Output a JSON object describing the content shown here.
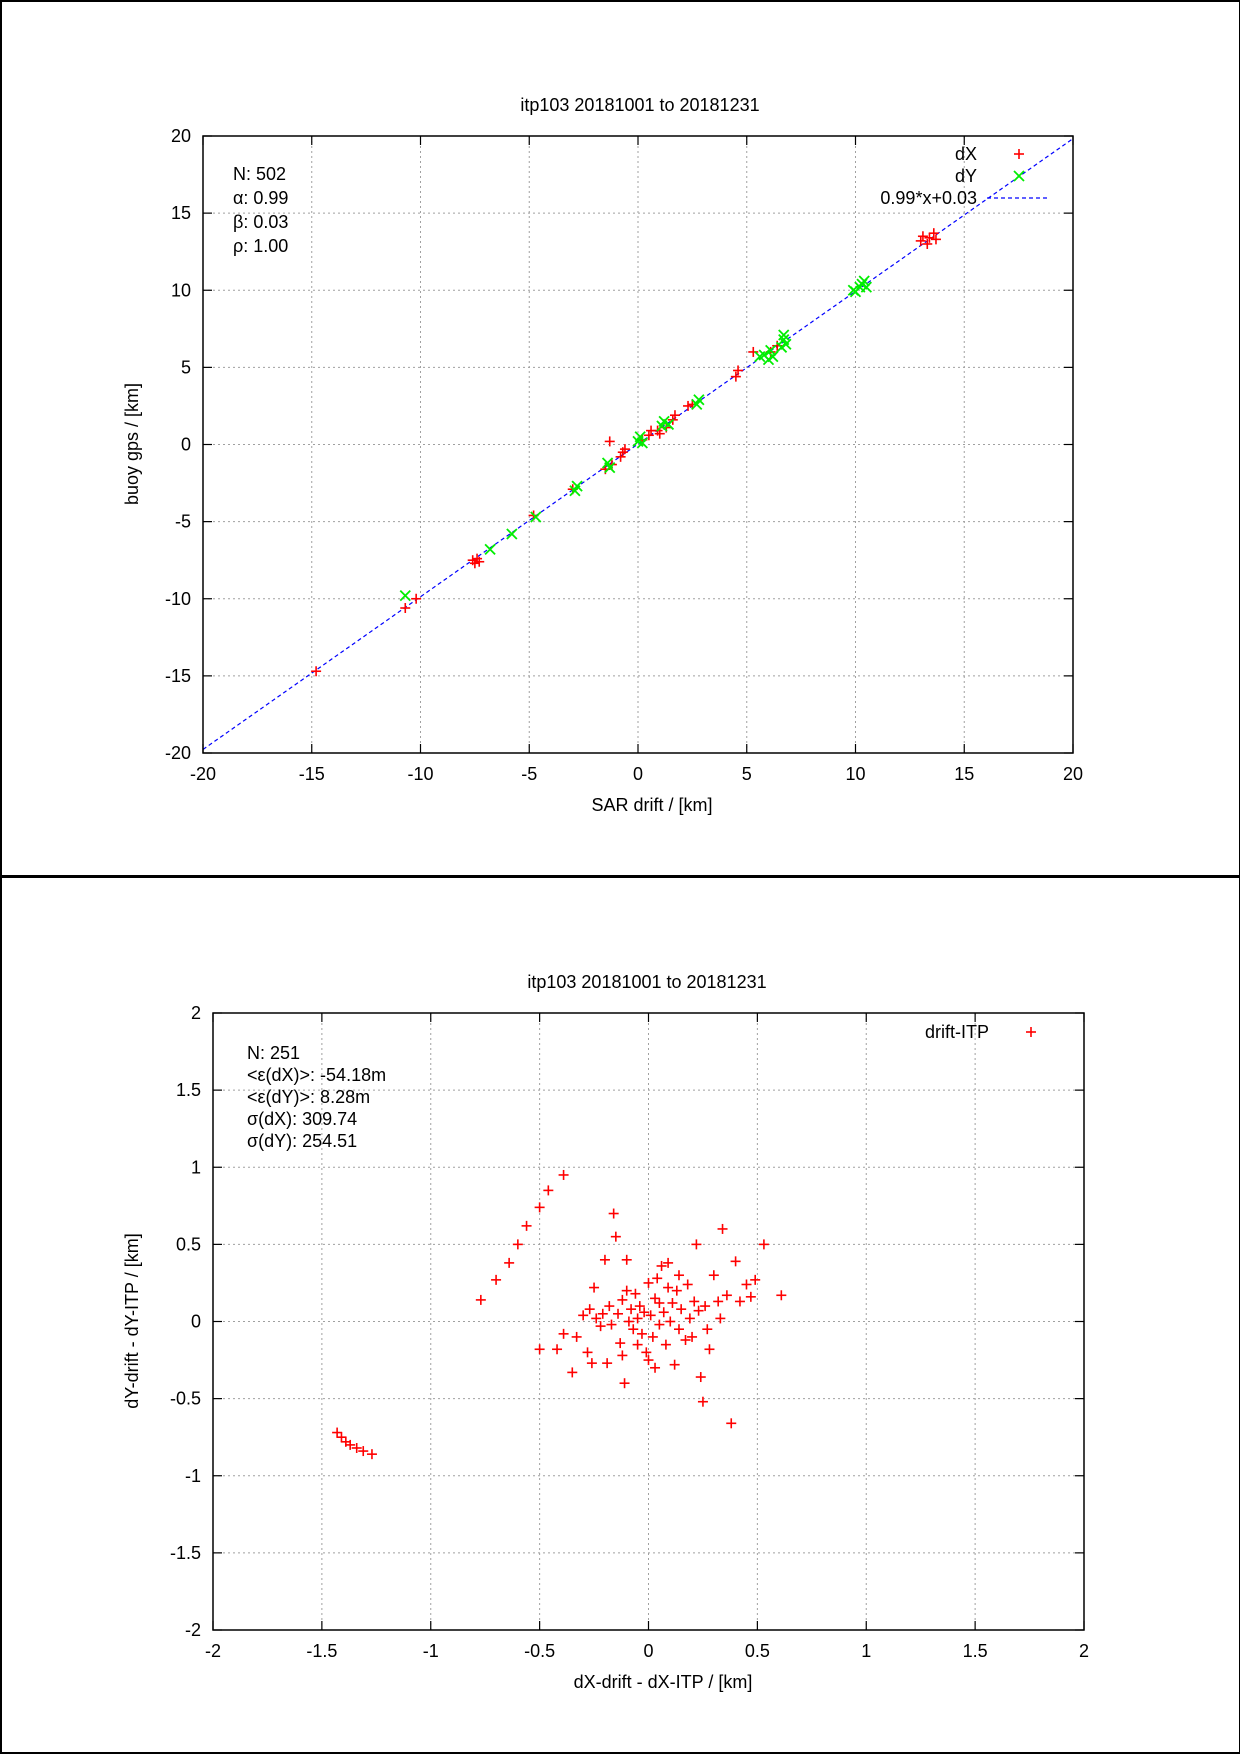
{
  "chart_data": [
    {
      "type": "scatter",
      "title": "itp103 20181001 to 20181231",
      "xlabel": "SAR drift / [km]",
      "ylabel": "buoy gps / [km]",
      "xlim": [
        -20,
        20
      ],
      "ylim": [
        -20,
        20
      ],
      "xticks": [
        -20,
        -15,
        -10,
        -5,
        0,
        5,
        10,
        15,
        20
      ],
      "yticks": [
        -20,
        -15,
        -10,
        -5,
        0,
        5,
        10,
        15,
        20
      ],
      "xtick_labels": [
        "-20",
        "-15",
        "-10",
        "-5",
        "0",
        "5",
        "10",
        "15",
        "20"
      ],
      "ytick_labels": [
        "-20",
        "-15",
        "-10",
        "-5",
        "0",
        "5",
        "10",
        "15",
        "20"
      ],
      "grid": true,
      "legend_position": "top-right",
      "stats": [
        "N: 502",
        "α: 0.99",
        "β: 0.03",
        "ρ: 1.00"
      ],
      "fit_line": {
        "name": "0.99*x+0.03",
        "slope": 0.99,
        "intercept": 0.03,
        "color": "#0000ff"
      },
      "series": [
        {
          "name": "dX",
          "marker": "plus",
          "color": "#ff0000",
          "points": [
            [
              -14.8,
              -14.7
            ],
            [
              -10.7,
              -10.6
            ],
            [
              -10.2,
              -10.0
            ],
            [
              -7.6,
              -7.5
            ],
            [
              -7.5,
              -7.7
            ],
            [
              -7.4,
              -7.4
            ],
            [
              -7.3,
              -7.6
            ],
            [
              -4.8,
              -4.6
            ],
            [
              -3.0,
              -2.9
            ],
            [
              -1.5,
              -1.6
            ],
            [
              -1.3,
              0.2
            ],
            [
              -1.2,
              -1.3
            ],
            [
              -0.8,
              -0.8
            ],
            [
              -0.7,
              -0.5
            ],
            [
              -0.6,
              -0.3
            ],
            [
              0.2,
              0.3
            ],
            [
              0.5,
              0.6
            ],
            [
              0.6,
              0.9
            ],
            [
              0.9,
              0.9
            ],
            [
              1.0,
              0.7
            ],
            [
              1.3,
              1.1
            ],
            [
              1.6,
              1.6
            ],
            [
              1.7,
              1.9
            ],
            [
              2.3,
              2.5
            ],
            [
              2.5,
              2.6
            ],
            [
              4.5,
              4.4
            ],
            [
              4.6,
              4.8
            ],
            [
              5.3,
              6.0
            ],
            [
              6.1,
              6.0
            ],
            [
              6.4,
              6.4
            ],
            [
              13.0,
              13.2
            ],
            [
              13.1,
              13.5
            ],
            [
              13.3,
              13.0
            ],
            [
              13.4,
              13.4
            ],
            [
              13.6,
              13.7
            ],
            [
              13.7,
              13.3
            ]
          ]
        },
        {
          "name": "dY",
          "marker": "cross",
          "color": "#00ee00",
          "points": [
            [
              -10.7,
              -9.8
            ],
            [
              -6.8,
              -6.8
            ],
            [
              -5.8,
              -5.8
            ],
            [
              -4.7,
              -4.7
            ],
            [
              -2.9,
              -3.0
            ],
            [
              -2.8,
              -2.7
            ],
            [
              -1.4,
              -1.2
            ],
            [
              -1.3,
              -1.5
            ],
            [
              0.0,
              0.2
            ],
            [
              0.1,
              0.5
            ],
            [
              0.2,
              0.1
            ],
            [
              1.1,
              1.2
            ],
            [
              1.2,
              1.5
            ],
            [
              1.4,
              1.3
            ],
            [
              2.7,
              2.6
            ],
            [
              2.8,
              2.9
            ],
            [
              5.6,
              5.7
            ],
            [
              5.8,
              5.8
            ],
            [
              6.0,
              5.5
            ],
            [
              6.1,
              6.1
            ],
            [
              6.2,
              5.7
            ],
            [
              6.6,
              6.3
            ],
            [
              6.7,
              6.8
            ],
            [
              6.7,
              7.1
            ],
            [
              6.8,
              6.5
            ],
            [
              9.9,
              10.0
            ],
            [
              10.0,
              9.9
            ],
            [
              10.2,
              10.2
            ],
            [
              10.3,
              10.4
            ],
            [
              10.4,
              10.6
            ],
            [
              10.5,
              10.2
            ]
          ]
        }
      ]
    },
    {
      "type": "scatter",
      "title": "itp103 20181001 to 20181231",
      "xlabel": "dX-drift - dX-ITP / [km]",
      "ylabel": "dY-drift - dY-ITP / [km]",
      "xlim": [
        -2,
        2
      ],
      "ylim": [
        -2,
        2
      ],
      "xticks": [
        -2,
        -1.5,
        -1,
        -0.5,
        0,
        0.5,
        1,
        1.5,
        2
      ],
      "yticks": [
        -2,
        -1.5,
        -1,
        -0.5,
        0,
        0.5,
        1,
        1.5,
        2
      ],
      "xtick_labels": [
        "-2",
        "-1.5",
        "-1",
        "-0.5",
        "0",
        "0.5",
        "1",
        "1.5",
        "2"
      ],
      "ytick_labels": [
        "-2",
        "-1.5",
        "-1",
        "-0.5",
        "0",
        "0.5",
        "1",
        "1.5",
        "2"
      ],
      "grid": true,
      "legend_position": "top-right",
      "stats": [
        "N: 251",
        "<ε(dX)>:  -54.18m",
        "<ε(dY)>: 8.28m",
        "σ(dX):  309.74",
        "σ(dY):  254.51"
      ],
      "series": [
        {
          "name": "drift-ITP",
          "marker": "plus",
          "color": "#ff0000",
          "points": [
            [
              -1.43,
              -0.72
            ],
            [
              -1.41,
              -0.75
            ],
            [
              -1.39,
              -0.78
            ],
            [
              -1.37,
              -0.8
            ],
            [
              -1.34,
              -0.82
            ],
            [
              -1.31,
              -0.84
            ],
            [
              -1.27,
              -0.86
            ],
            [
              -0.77,
              0.14
            ],
            [
              -0.7,
              0.27
            ],
            [
              -0.64,
              0.38
            ],
            [
              -0.6,
              0.5
            ],
            [
              -0.56,
              0.62
            ],
            [
              -0.5,
              0.74
            ],
            [
              -0.46,
              0.85
            ],
            [
              -0.39,
              0.95
            ],
            [
              -0.5,
              -0.18
            ],
            [
              -0.42,
              -0.18
            ],
            [
              -0.39,
              -0.08
            ],
            [
              -0.35,
              -0.33
            ],
            [
              -0.33,
              -0.1
            ],
            [
              -0.3,
              0.04
            ],
            [
              -0.28,
              -0.2
            ],
            [
              -0.26,
              -0.27
            ],
            [
              -0.25,
              0.22
            ],
            [
              -0.24,
              0.02
            ],
            [
              -0.22,
              -0.03
            ],
            [
              -0.2,
              0.4
            ],
            [
              -0.19,
              -0.27
            ],
            [
              -0.18,
              0.1
            ],
            [
              -0.16,
              0.7
            ],
            [
              -0.15,
              0.55
            ],
            [
              -0.14,
              0.05
            ],
            [
              -0.13,
              -0.14
            ],
            [
              -0.12,
              0.14
            ],
            [
              -0.11,
              -0.4
            ],
            [
              -0.1,
              0.4
            ],
            [
              -0.09,
              0.0
            ],
            [
              -0.08,
              0.08
            ],
            [
              -0.07,
              -0.05
            ],
            [
              -0.06,
              0.18
            ],
            [
              -0.05,
              0.02
            ],
            [
              -0.04,
              0.1
            ],
            [
              -0.03,
              -0.08
            ],
            [
              -0.02,
              0.06
            ],
            [
              -0.01,
              -0.2
            ],
            [
              0.0,
              0.25
            ],
            [
              0.01,
              0.04
            ],
            [
              0.02,
              -0.1
            ],
            [
              0.03,
              0.15
            ],
            [
              0.04,
              0.28
            ],
            [
              0.05,
              -0.02
            ],
            [
              0.06,
              0.36
            ],
            [
              0.07,
              0.06
            ],
            [
              0.08,
              -0.15
            ],
            [
              0.09,
              0.38
            ],
            [
              0.1,
              0.0
            ],
            [
              0.11,
              0.12
            ],
            [
              0.12,
              -0.28
            ],
            [
              0.13,
              0.2
            ],
            [
              0.14,
              -0.05
            ],
            [
              0.15,
              0.08
            ],
            [
              0.17,
              -0.12
            ],
            [
              0.18,
              0.24
            ],
            [
              0.19,
              0.02
            ],
            [
              0.2,
              -0.1
            ],
            [
              0.22,
              0.5
            ],
            [
              0.23,
              0.07
            ],
            [
              0.24,
              -0.36
            ],
            [
              0.25,
              -0.52
            ],
            [
              0.26,
              0.1
            ],
            [
              0.28,
              -0.18
            ],
            [
              0.3,
              0.3
            ],
            [
              0.32,
              0.13
            ],
            [
              0.34,
              0.6
            ],
            [
              0.36,
              0.17
            ],
            [
              0.38,
              -0.66
            ],
            [
              0.4,
              0.39
            ],
            [
              0.42,
              0.13
            ],
            [
              0.45,
              0.24
            ],
            [
              0.47,
              0.16
            ],
            [
              0.49,
              0.27
            ],
            [
              0.53,
              0.5
            ],
            [
              0.61,
              0.17
            ],
            [
              -0.21,
              0.05
            ],
            [
              -0.17,
              -0.02
            ],
            [
              -0.1,
              0.2
            ],
            [
              -0.05,
              -0.15
            ],
            [
              0.0,
              -0.25
            ],
            [
              0.05,
              0.12
            ],
            [
              0.09,
              0.22
            ],
            [
              0.14,
              0.3
            ],
            [
              0.21,
              0.13
            ],
            [
              0.27,
              -0.05
            ],
            [
              0.33,
              0.02
            ],
            [
              -0.27,
              0.08
            ],
            [
              -0.12,
              -0.22
            ],
            [
              0.03,
              -0.3
            ]
          ]
        }
      ]
    }
  ]
}
